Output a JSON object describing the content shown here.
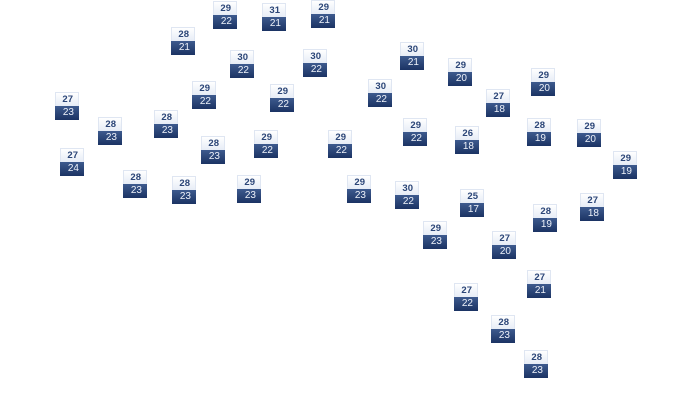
{
  "colors": {
    "high_text": "#2b4577",
    "low_bg": "#1b3363",
    "low_text": "#eef2fa"
  },
  "stations": [
    {
      "high": "29",
      "low": "22"
    },
    {
      "high": "31",
      "low": "21"
    },
    {
      "high": "29",
      "low": "21"
    },
    {
      "high": "28",
      "low": "21"
    },
    {
      "high": "30",
      "low": "22"
    },
    {
      "high": "30",
      "low": "22"
    },
    {
      "high": "29",
      "low": "22"
    },
    {
      "high": "29",
      "low": "22"
    },
    {
      "high": "27",
      "low": "23"
    },
    {
      "high": "28",
      "low": "23"
    },
    {
      "high": "28",
      "low": "23"
    },
    {
      "high": "28",
      "low": "23"
    },
    {
      "high": "29",
      "low": "22"
    },
    {
      "high": "29",
      "low": "22"
    },
    {
      "high": "27",
      "low": "24"
    },
    {
      "high": "28",
      "low": "23"
    },
    {
      "high": "28",
      "low": "23"
    },
    {
      "high": "29",
      "low": "23"
    },
    {
      "high": "30",
      "low": "21"
    },
    {
      "high": "29",
      "low": "20"
    },
    {
      "high": "29",
      "low": "20"
    },
    {
      "high": "30",
      "low": "22"
    },
    {
      "high": "27",
      "low": "18"
    },
    {
      "high": "29",
      "low": "22"
    },
    {
      "high": "26",
      "low": "18"
    },
    {
      "high": "28",
      "low": "19"
    },
    {
      "high": "29",
      "low": "20"
    },
    {
      "high": "29",
      "low": "19"
    },
    {
      "high": "29",
      "low": "23"
    },
    {
      "high": "30",
      "low": "22"
    },
    {
      "high": "25",
      "low": "17"
    },
    {
      "high": "28",
      "low": "19"
    },
    {
      "high": "27",
      "low": "18"
    },
    {
      "high": "29",
      "low": "23"
    },
    {
      "high": "27",
      "low": "20"
    },
    {
      "high": "27",
      "low": "21"
    },
    {
      "high": "27",
      "low": "22"
    },
    {
      "high": "28",
      "low": "23"
    },
    {
      "high": "28",
      "low": "23"
    }
  ]
}
